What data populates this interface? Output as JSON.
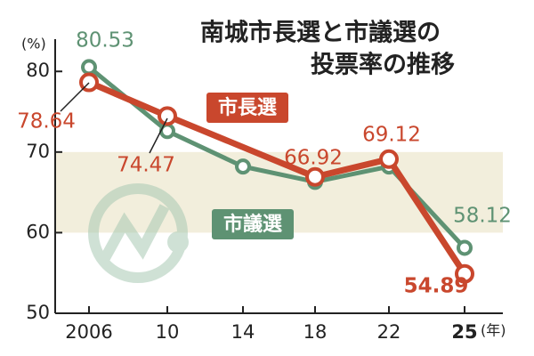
{
  "chart_data": {
    "type": "line",
    "title": [
      "南城市長選と市議選の",
      "投票率の推移"
    ],
    "y_unit": "(%)",
    "x_unit": "(年)",
    "categories": [
      "2006",
      "10",
      "14",
      "18",
      "22",
      "25"
    ],
    "ylim": [
      50,
      84
    ],
    "yticks": [
      50,
      60,
      70,
      80
    ],
    "shaded_range": [
      60,
      70
    ],
    "shaded_color": "#f2eedc",
    "series": [
      {
        "name": "市議選",
        "color": "#5e9273",
        "x": [
          "2006",
          "10",
          "14",
          "18",
          "22",
          "25"
        ],
        "values": [
          80.53,
          72.6,
          68.2,
          66.3,
          68.2,
          58.12
        ],
        "value_labels": [
          "80.53",
          null,
          null,
          null,
          null,
          "58.12"
        ]
      },
      {
        "name": "市長選",
        "color": "#c9472d",
        "x": [
          "2006",
          "10",
          "18",
          "22",
          "25"
        ],
        "values": [
          78.64,
          74.47,
          66.92,
          69.12,
          54.89
        ],
        "value_labels": [
          "78.64",
          "74.47",
          "66.92",
          "69.12",
          "54.89"
        ]
      }
    ]
  }
}
